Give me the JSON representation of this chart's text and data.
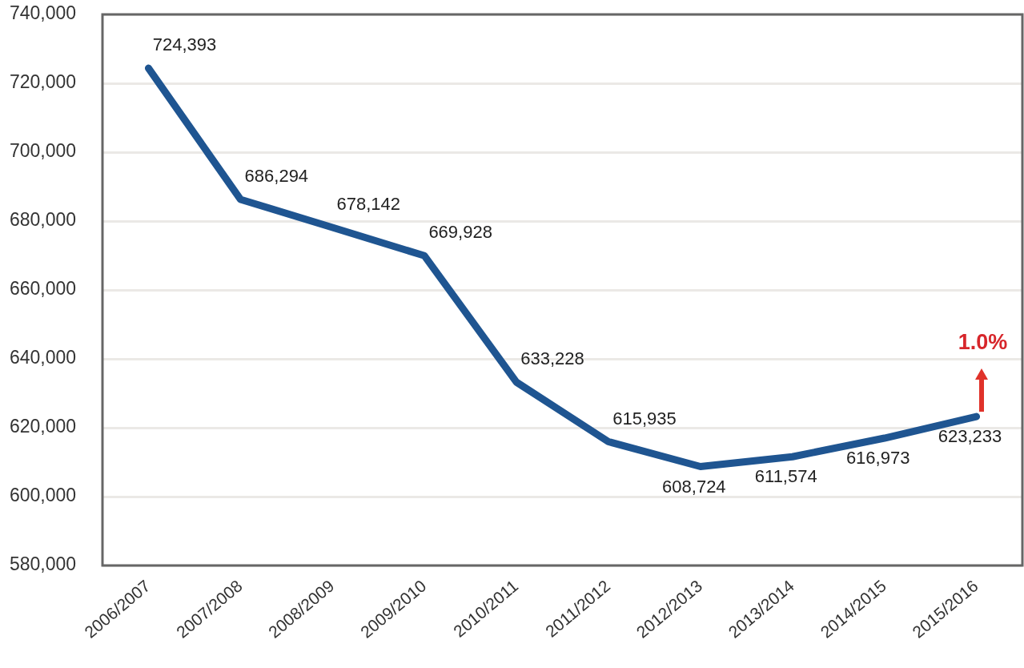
{
  "chart_data": {
    "type": "line",
    "categories": [
      "2006/2007",
      "2007/2008",
      "2008/2009",
      "2009/2010",
      "2010/2011",
      "2011/2012",
      "2012/2013",
      "2013/2014",
      "2014/2015",
      "2015/2016"
    ],
    "series": [
      {
        "color": "#1f5591",
        "values": [
          724393,
          686294,
          678142,
          669928,
          633228,
          615935,
          608724,
          611574,
          616973,
          623233
        ],
        "value_labels": [
          "724,393",
          "686,294",
          "678,142",
          "669,928",
          "633,228",
          "615,935",
          "608,724",
          "611,574",
          "616,973",
          "623,233"
        ]
      }
    ],
    "ylim": [
      580000,
      740000
    ],
    "yticks": [
      {
        "value": 580000,
        "label": "580,000"
      },
      {
        "value": 600000,
        "label": "600,000"
      },
      {
        "value": 620000,
        "label": "620,000"
      },
      {
        "value": 640000,
        "label": "640,000"
      },
      {
        "value": 660000,
        "label": "660,000"
      },
      {
        "value": 680000,
        "label": "680,000"
      },
      {
        "value": 700000,
        "label": "700,000"
      },
      {
        "value": 720000,
        "label": "720,000"
      },
      {
        "value": 740000,
        "label": "740,000"
      }
    ],
    "grid": "y",
    "legend": false,
    "marker": "none",
    "annotations": [
      {
        "text": "1.0%",
        "x": "2015/2016",
        "y": 623233
      }
    ]
  }
}
